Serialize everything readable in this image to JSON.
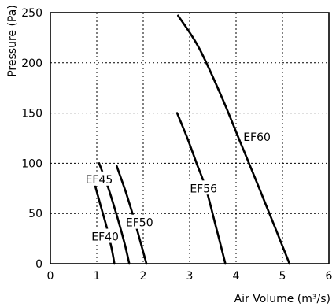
{
  "chart_data": {
    "type": "line",
    "xlabel": "Air Volume (m³/s)",
    "ylabel": "Pressure (Pa)",
    "xlim": [
      0,
      6
    ],
    "ylim": [
      0,
      250
    ],
    "x_ticks": [
      "0",
      "1",
      "2",
      "3",
      "4",
      "5",
      "6"
    ],
    "y_ticks": [
      "0",
      "50",
      "100",
      "150",
      "200",
      "250"
    ],
    "grid": true,
    "series": [
      {
        "name": "EF40",
        "label_at": [
          1.18,
          27
        ],
        "points": [
          [
            0.95,
            80
          ],
          [
            1.1,
            55
          ],
          [
            1.22,
            35
          ],
          [
            1.32,
            15
          ],
          [
            1.38,
            0
          ]
        ]
      },
      {
        "name": "EF45",
        "label_at": [
          1.05,
          84
        ],
        "points": [
          [
            1.05,
            100
          ],
          [
            1.25,
            75
          ],
          [
            1.45,
            45
          ],
          [
            1.6,
            20
          ],
          [
            1.7,
            0
          ]
        ]
      },
      {
        "name": "EF50",
        "label_at": [
          1.92,
          41
        ],
        "points": [
          [
            1.43,
            97
          ],
          [
            1.62,
            72
          ],
          [
            1.8,
            45
          ],
          [
            1.95,
            20
          ],
          [
            2.07,
            0
          ]
        ]
      },
      {
        "name": "EF56",
        "label_at": [
          3.3,
          75
        ],
        "points": [
          [
            2.73,
            150
          ],
          [
            2.95,
            125
          ],
          [
            3.15,
            100
          ],
          [
            3.35,
            75
          ],
          [
            3.55,
            40
          ],
          [
            3.77,
            0
          ]
        ]
      },
      {
        "name": "EF60",
        "label_at": [
          4.45,
          126
        ],
        "points": [
          [
            2.75,
            247
          ],
          [
            3.2,
            215
          ],
          [
            3.7,
            165
          ],
          [
            4.1,
            120
          ],
          [
            4.5,
            75
          ],
          [
            4.85,
            35
          ],
          [
            5.15,
            0
          ]
        ]
      }
    ]
  }
}
